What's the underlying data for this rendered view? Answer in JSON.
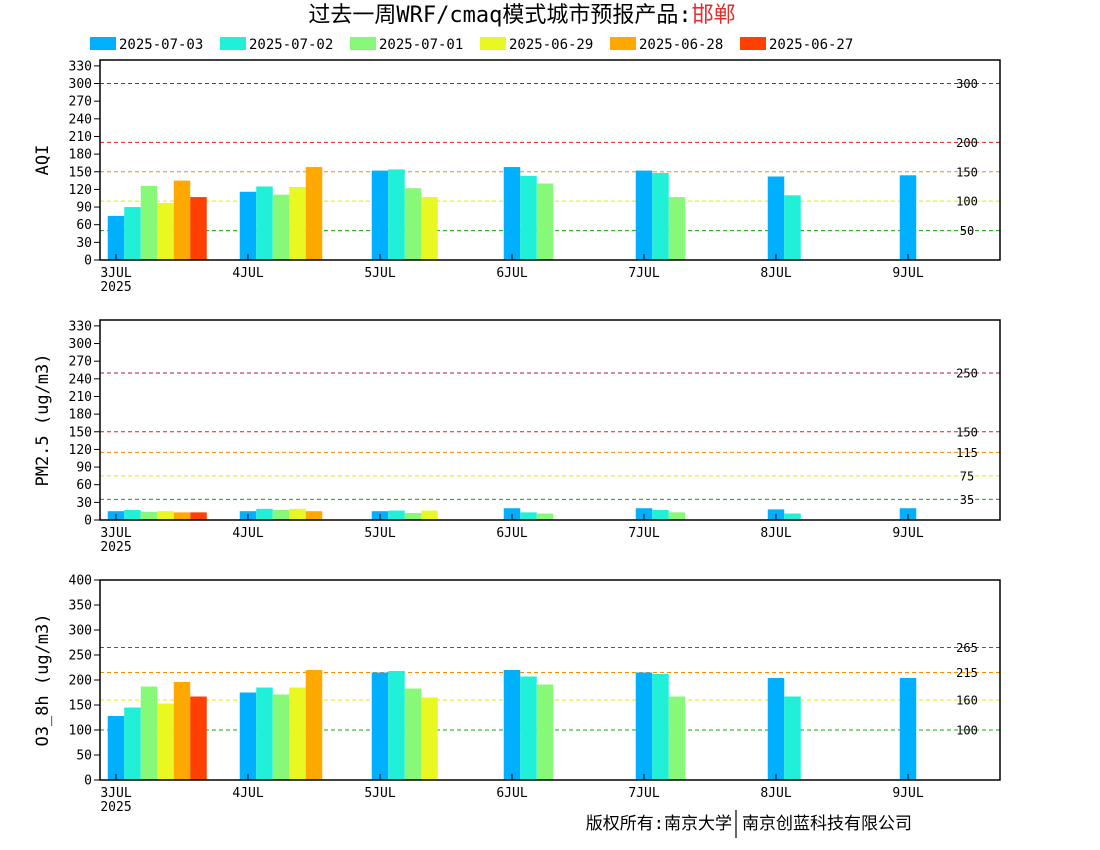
{
  "title": {
    "prefix": "过去一周WRF/cmaq模式城市预报产品:",
    "city": "邯郸",
    "city_color": "#e03030"
  },
  "copyright": {
    "left": "版权所有:南京大学",
    "right": "南京创蓝科技有限公司"
  },
  "colors": {
    "2025-07-03": "#00b0ff",
    "2025-07-02": "#20f0d8",
    "2025-07-01": "#88f878",
    "2025-06-29": "#e8f820",
    "2025-06-28": "#ffa800",
    "2025-06-27": "#ff4000"
  },
  "legend": [
    "2025-07-03",
    "2025-07-02",
    "2025-07-01",
    "2025-06-29",
    "2025-06-28",
    "2025-06-27"
  ],
  "x_tick_labels": [
    "3JUL",
    "4JUL",
    "5JUL",
    "6JUL",
    "7JUL",
    "8JUL",
    "9JUL"
  ],
  "x_year_label": "2025",
  "chart_data": [
    {
      "type": "bar",
      "ylabel": "AQI",
      "ylim": [
        0,
        340
      ],
      "yticks": [
        0,
        30,
        60,
        90,
        120,
        150,
        180,
        210,
        240,
        270,
        300,
        330
      ],
      "thresholds": [
        {
          "value": 300,
          "label": "300",
          "color": "#b01060"
        },
        {
          "value": 200,
          "label": "200",
          "color": "#e02020"
        },
        {
          "value": 150,
          "label": "150",
          "color": "#ff8800"
        },
        {
          "value": 100,
          "label": "100",
          "color": "#e8e800"
        },
        {
          "value": 50,
          "label": "50",
          "color": "#00b000"
        }
      ],
      "series": [
        {
          "name": "2025-07-03",
          "points": [
            [
              0,
              75
            ],
            [
              1,
              116
            ],
            [
              2,
              152
            ],
            [
              3,
              158
            ],
            [
              4,
              152
            ],
            [
              5,
              142
            ],
            [
              6,
              144
            ]
          ]
        },
        {
          "name": "2025-07-02",
          "points": [
            [
              0,
              90
            ],
            [
              1,
              125
            ],
            [
              2,
              154
            ],
            [
              3,
              143
            ],
            [
              4,
              148
            ],
            [
              5,
              110
            ]
          ]
        },
        {
          "name": "2025-07-01",
          "points": [
            [
              0,
              126
            ],
            [
              1,
              111
            ],
            [
              2,
              122
            ],
            [
              3,
              130
            ],
            [
              4,
              107
            ]
          ]
        },
        {
          "name": "2025-06-29",
          "points": [
            [
              0,
              97
            ],
            [
              1,
              124
            ],
            [
              2,
              107
            ]
          ]
        },
        {
          "name": "2025-06-28",
          "points": [
            [
              0,
              135
            ],
            [
              1,
              158
            ]
          ]
        },
        {
          "name": "2025-06-27",
          "points": [
            [
              0,
              107
            ]
          ]
        }
      ]
    },
    {
      "type": "bar",
      "ylabel": "PM2.5 (ug/m3)",
      "ylim": [
        0,
        340
      ],
      "yticks": [
        0,
        30,
        60,
        90,
        120,
        150,
        180,
        210,
        240,
        270,
        300,
        330
      ],
      "thresholds": [
        {
          "value": 250,
          "label": "250",
          "color": "#b01060"
        },
        {
          "value": 150,
          "label": "150",
          "color": "#e02020"
        },
        {
          "value": 115,
          "label": "115",
          "color": "#ff8800"
        },
        {
          "value": 75,
          "label": "75",
          "color": "#e8e800"
        },
        {
          "value": 35,
          "label": "35",
          "color": "#00b000"
        }
      ],
      "series": [
        {
          "name": "2025-07-03",
          "points": [
            [
              0,
              15
            ],
            [
              1,
              15
            ],
            [
              2,
              15
            ],
            [
              3,
              20
            ],
            [
              4,
              20
            ],
            [
              5,
              18
            ],
            [
              6,
              20
            ]
          ]
        },
        {
          "name": "2025-07-02",
          "points": [
            [
              0,
              17
            ],
            [
              1,
              19
            ],
            [
              2,
              16
            ],
            [
              3,
              13
            ],
            [
              4,
              17
            ],
            [
              5,
              11
            ]
          ]
        },
        {
          "name": "2025-07-01",
          "points": [
            [
              0,
              14
            ],
            [
              1,
              17
            ],
            [
              2,
              12
            ],
            [
              3,
              11
            ],
            [
              4,
              13
            ]
          ]
        },
        {
          "name": "2025-06-29",
          "points": [
            [
              0,
              15
            ],
            [
              1,
              19
            ],
            [
              2,
              16
            ]
          ]
        },
        {
          "name": "2025-06-28",
          "points": [
            [
              0,
              13
            ],
            [
              1,
              15
            ]
          ]
        },
        {
          "name": "2025-06-27",
          "points": [
            [
              0,
              13
            ]
          ]
        }
      ]
    },
    {
      "type": "bar",
      "ylabel": "O3_8h (ug/m3)",
      "ylim": [
        0,
        400
      ],
      "yticks": [
        0,
        50,
        100,
        150,
        200,
        250,
        300,
        350,
        400
      ],
      "thresholds": [
        {
          "value": 265,
          "label": "265",
          "color": "#e02020"
        },
        {
          "value": 215,
          "label": "215",
          "color": "#ff8800"
        },
        {
          "value": 160,
          "label": "160",
          "color": "#e8e800"
        },
        {
          "value": 100,
          "label": "100",
          "color": "#00b000"
        }
      ],
      "series": [
        {
          "name": "2025-07-03",
          "points": [
            [
              0,
              128
            ],
            [
              1,
              175
            ],
            [
              2,
              215
            ],
            [
              3,
              220
            ],
            [
              4,
              215
            ],
            [
              5,
              204
            ],
            [
              6,
              204
            ]
          ]
        },
        {
          "name": "2025-07-02",
          "points": [
            [
              0,
              145
            ],
            [
              1,
              185
            ],
            [
              2,
              218
            ],
            [
              3,
              207
            ],
            [
              4,
              212
            ],
            [
              5,
              167
            ]
          ]
        },
        {
          "name": "2025-07-01",
          "points": [
            [
              0,
              187
            ],
            [
              1,
              171
            ],
            [
              2,
              183
            ],
            [
              3,
              191
            ],
            [
              4,
              167
            ]
          ]
        },
        {
          "name": "2025-06-29",
          "points": [
            [
              0,
              153
            ],
            [
              1,
              185
            ],
            [
              2,
              165
            ]
          ]
        },
        {
          "name": "2025-06-28",
          "points": [
            [
              0,
              196
            ],
            [
              1,
              220
            ]
          ]
        },
        {
          "name": "2025-06-27",
          "points": [
            [
              0,
              167
            ]
          ]
        }
      ]
    }
  ]
}
